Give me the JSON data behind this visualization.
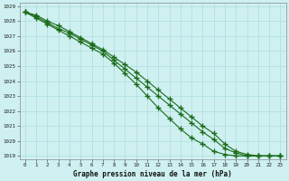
{
  "title": "Graphe pression niveau de la mer (hPa)",
  "background_color": "#cff0f0",
  "grid_color": "#aadddd",
  "line_color": "#1a6b1a",
  "xlim_min": -0.5,
  "xlim_max": 23.5,
  "ylim_min": 1018.8,
  "ylim_max": 1029.2,
  "yticks": [
    1019,
    1020,
    1021,
    1022,
    1023,
    1024,
    1025,
    1026,
    1027,
    1028,
    1029
  ],
  "xticks": [
    0,
    1,
    2,
    3,
    4,
    5,
    6,
    7,
    8,
    9,
    10,
    11,
    12,
    13,
    14,
    15,
    16,
    17,
    18,
    19,
    20,
    21,
    22,
    23
  ],
  "series": [
    [
      1028.6,
      1028.4,
      1028.0,
      1027.7,
      1027.3,
      1026.9,
      1026.5,
      1026.1,
      1025.6,
      1025.1,
      1024.6,
      1024.0,
      1023.4,
      1022.8,
      1022.2,
      1021.6,
      1021.0,
      1020.5,
      1019.8,
      1019.3,
      1019.1,
      1019.0,
      1019.0,
      1019.0
    ],
    [
      1028.6,
      1028.3,
      1027.9,
      1027.5,
      1027.2,
      1026.8,
      1026.4,
      1026.0,
      1025.4,
      1024.8,
      1024.2,
      1023.6,
      1023.0,
      1022.4,
      1021.8,
      1021.2,
      1020.6,
      1020.1,
      1019.5,
      1019.2,
      1019.0,
      1019.0,
      1019.0,
      1019.0
    ],
    [
      1028.6,
      1028.2,
      1027.8,
      1027.4,
      1027.0,
      1026.6,
      1026.2,
      1025.8,
      1025.2,
      1024.5,
      1023.8,
      1023.0,
      1022.2,
      1021.5,
      1020.8,
      1020.2,
      1019.8,
      1019.3,
      1019.1,
      1019.0,
      1019.0,
      1019.0,
      1019.0,
      1019.0
    ]
  ]
}
